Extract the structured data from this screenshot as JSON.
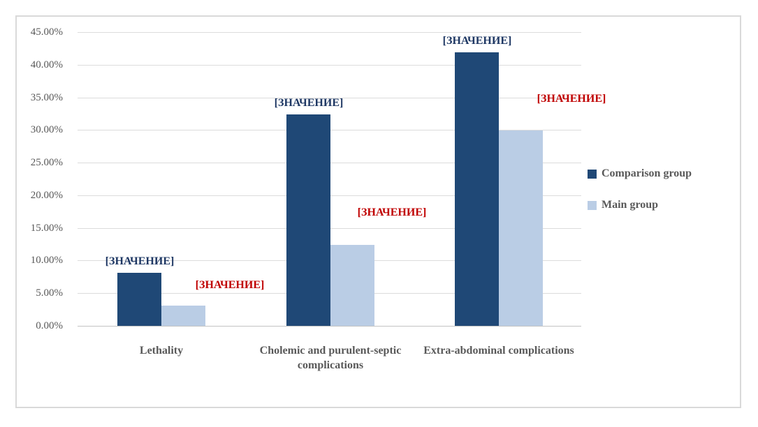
{
  "colors": {
    "comparison_bar": "#1F4876",
    "main_bar": "#BACDE5",
    "comparison_label_text": "#1F3864",
    "main_label_text": "#C00000",
    "axis_text": "#595959",
    "gridline": "#DCDCDC",
    "frame_border": "#D9D9D9"
  },
  "chart_data": {
    "type": "bar",
    "title": "",
    "xlabel": "",
    "ylabel": "",
    "ylim": [
      0,
      45
    ],
    "y_tick_step": 5,
    "grid": true,
    "legend_position": "right",
    "categories": [
      "Lethality",
      "Cholemic and purulent-septic complications",
      "Extra-abdominal complications"
    ],
    "y_ticks": [
      "0.00%",
      "5.00%",
      "10.00%",
      "15.00%",
      "20.00%",
      "25.00%",
      "30.00%",
      "35.00%",
      "40.00%",
      "45.00%"
    ],
    "series": [
      {
        "name": "Comparison group",
        "color": "#1F4876",
        "values": [
          8.1,
          32.4,
          41.9
        ],
        "data_labels": [
          "[ЗНАЧЕНИЕ]",
          "[ЗНАЧЕНИЕ]",
          "[ЗНАЧЕНИЕ]"
        ],
        "label_color": "#1F3864"
      },
      {
        "name": "Main group",
        "color": "#BACDE5",
        "values": [
          3.1,
          12.4,
          29.9
        ],
        "data_labels": [
          "[ЗНАЧЕНИЕ]",
          "[ЗНАЧЕНИЕ]",
          "[ЗНАЧЕНИЕ]"
        ],
        "label_color": "#C00000"
      }
    ]
  },
  "legend": {
    "items": [
      {
        "label": "Comparison group",
        "color": "#1F4876"
      },
      {
        "label": "Main group",
        "color": "#BACDE5"
      }
    ]
  }
}
